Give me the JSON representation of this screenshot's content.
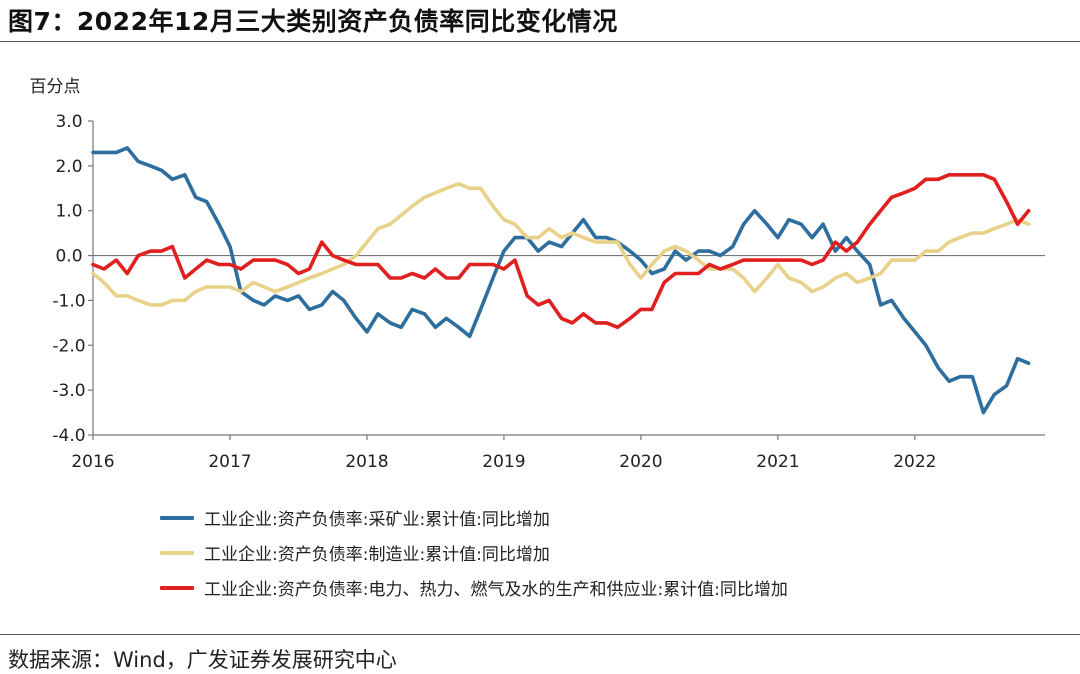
{
  "header": {
    "title": "图7：2022年12月三大类别资产负债率同比变化情况"
  },
  "footer": {
    "source": "数据来源：Wind，广发证券发展研究中心"
  },
  "chart_data": {
    "type": "line",
    "unit_label": "百分点",
    "ylim": [
      -4.0,
      3.0
    ],
    "yticks": [
      "3.0",
      "2.0",
      "1.0",
      "0.0",
      "-1.0",
      "-2.0",
      "-3.0",
      "-4.0"
    ],
    "xlim": [
      2016,
      2022.95
    ],
    "xticks": [
      "2016",
      "2017",
      "2018",
      "2019",
      "2020",
      "2021",
      "2022"
    ],
    "grid": false,
    "legend_position": "bottom",
    "series": [
      {
        "name": "工业企业:资产负债率:采矿业:累计值:同比增加",
        "color": "#2e6e9e",
        "points": [
          [
            2016.0,
            2.3
          ],
          [
            2016.08,
            2.3
          ],
          [
            2016.17,
            2.3
          ],
          [
            2016.25,
            2.4
          ],
          [
            2016.33,
            2.1
          ],
          [
            2016.42,
            2.0
          ],
          [
            2016.5,
            1.9
          ],
          [
            2016.58,
            1.7
          ],
          [
            2016.67,
            1.8
          ],
          [
            2016.75,
            1.3
          ],
          [
            2016.83,
            1.2
          ],
          [
            2016.92,
            0.7
          ],
          [
            2017.0,
            0.2
          ],
          [
            2017.08,
            -0.8
          ],
          [
            2017.17,
            -1.0
          ],
          [
            2017.25,
            -1.1
          ],
          [
            2017.33,
            -0.9
          ],
          [
            2017.42,
            -1.0
          ],
          [
            2017.5,
            -0.9
          ],
          [
            2017.58,
            -1.2
          ],
          [
            2017.67,
            -1.1
          ],
          [
            2017.75,
            -0.8
          ],
          [
            2017.83,
            -1.0
          ],
          [
            2017.92,
            -1.4
          ],
          [
            2018.0,
            -1.7
          ],
          [
            2018.08,
            -1.3
          ],
          [
            2018.17,
            -1.5
          ],
          [
            2018.25,
            -1.6
          ],
          [
            2018.33,
            -1.2
          ],
          [
            2018.42,
            -1.3
          ],
          [
            2018.5,
            -1.6
          ],
          [
            2018.58,
            -1.4
          ],
          [
            2018.67,
            -1.6
          ],
          [
            2018.75,
            -1.8
          ],
          [
            2018.83,
            -1.2
          ],
          [
            2018.92,
            -0.5
          ],
          [
            2019.0,
            0.1
          ],
          [
            2019.08,
            0.4
          ],
          [
            2019.17,
            0.4
          ],
          [
            2019.25,
            0.1
          ],
          [
            2019.33,
            0.3
          ],
          [
            2019.42,
            0.2
          ],
          [
            2019.5,
            0.5
          ],
          [
            2019.58,
            0.8
          ],
          [
            2019.67,
            0.4
          ],
          [
            2019.75,
            0.4
          ],
          [
            2019.83,
            0.3
          ],
          [
            2019.92,
            0.1
          ],
          [
            2020.0,
            -0.1
          ],
          [
            2020.08,
            -0.4
          ],
          [
            2020.17,
            -0.3
          ],
          [
            2020.25,
            0.1
          ],
          [
            2020.33,
            -0.1
          ],
          [
            2020.42,
            0.1
          ],
          [
            2020.5,
            0.1
          ],
          [
            2020.58,
            0.0
          ],
          [
            2020.67,
            0.2
          ],
          [
            2020.75,
            0.7
          ],
          [
            2020.83,
            1.0
          ],
          [
            2020.92,
            0.7
          ],
          [
            2021.0,
            0.4
          ],
          [
            2021.08,
            0.8
          ],
          [
            2021.17,
            0.7
          ],
          [
            2021.25,
            0.4
          ],
          [
            2021.33,
            0.7
          ],
          [
            2021.42,
            0.1
          ],
          [
            2021.5,
            0.4
          ],
          [
            2021.58,
            0.1
          ],
          [
            2021.67,
            -0.2
          ],
          [
            2021.75,
            -1.1
          ],
          [
            2021.83,
            -1.0
          ],
          [
            2021.92,
            -1.4
          ],
          [
            2022.0,
            -1.7
          ],
          [
            2022.08,
            -2.0
          ],
          [
            2022.17,
            -2.5
          ],
          [
            2022.25,
            -2.8
          ],
          [
            2022.33,
            -2.7
          ],
          [
            2022.42,
            -2.7
          ],
          [
            2022.5,
            -3.5
          ],
          [
            2022.58,
            -3.1
          ],
          [
            2022.67,
            -2.9
          ],
          [
            2022.75,
            -2.3
          ],
          [
            2022.83,
            -2.4
          ]
        ]
      },
      {
        "name": "工业企业:资产负债率:制造业:累计值:同比增加",
        "color": "#e8d28a",
        "points": [
          [
            2016.0,
            -0.4
          ],
          [
            2016.08,
            -0.6
          ],
          [
            2016.17,
            -0.9
          ],
          [
            2016.25,
            -0.9
          ],
          [
            2016.33,
            -1.0
          ],
          [
            2016.42,
            -1.1
          ],
          [
            2016.5,
            -1.1
          ],
          [
            2016.58,
            -1.0
          ],
          [
            2016.67,
            -1.0
          ],
          [
            2016.75,
            -0.8
          ],
          [
            2016.83,
            -0.7
          ],
          [
            2016.92,
            -0.7
          ],
          [
            2017.0,
            -0.7
          ],
          [
            2017.08,
            -0.8
          ],
          [
            2017.17,
            -0.6
          ],
          [
            2017.25,
            -0.7
          ],
          [
            2017.33,
            -0.8
          ],
          [
            2017.42,
            -0.7
          ],
          [
            2017.5,
            -0.6
          ],
          [
            2017.58,
            -0.5
          ],
          [
            2017.67,
            -0.4
          ],
          [
            2017.75,
            -0.3
          ],
          [
            2017.83,
            -0.2
          ],
          [
            2017.92,
            0.0
          ],
          [
            2018.0,
            0.3
          ],
          [
            2018.08,
            0.6
          ],
          [
            2018.17,
            0.7
          ],
          [
            2018.25,
            0.9
          ],
          [
            2018.33,
            1.1
          ],
          [
            2018.42,
            1.3
          ],
          [
            2018.5,
            1.4
          ],
          [
            2018.58,
            1.5
          ],
          [
            2018.67,
            1.6
          ],
          [
            2018.75,
            1.5
          ],
          [
            2018.83,
            1.5
          ],
          [
            2018.92,
            1.1
          ],
          [
            2019.0,
            0.8
          ],
          [
            2019.08,
            0.7
          ],
          [
            2019.17,
            0.4
          ],
          [
            2019.25,
            0.4
          ],
          [
            2019.33,
            0.6
          ],
          [
            2019.42,
            0.4
          ],
          [
            2019.5,
            0.5
          ],
          [
            2019.58,
            0.4
          ],
          [
            2019.67,
            0.3
          ],
          [
            2019.75,
            0.3
          ],
          [
            2019.83,
            0.3
          ],
          [
            2019.92,
            -0.2
          ],
          [
            2020.0,
            -0.5
          ],
          [
            2020.08,
            -0.2
          ],
          [
            2020.17,
            0.1
          ],
          [
            2020.25,
            0.2
          ],
          [
            2020.33,
            0.1
          ],
          [
            2020.42,
            -0.1
          ],
          [
            2020.5,
            -0.3
          ],
          [
            2020.58,
            -0.3
          ],
          [
            2020.67,
            -0.3
          ],
          [
            2020.75,
            -0.5
          ],
          [
            2020.83,
            -0.8
          ],
          [
            2020.92,
            -0.5
          ],
          [
            2021.0,
            -0.2
          ],
          [
            2021.08,
            -0.5
          ],
          [
            2021.17,
            -0.6
          ],
          [
            2021.25,
            -0.8
          ],
          [
            2021.33,
            -0.7
          ],
          [
            2021.42,
            -0.5
          ],
          [
            2021.5,
            -0.4
          ],
          [
            2021.58,
            -0.6
          ],
          [
            2021.67,
            -0.5
          ],
          [
            2021.75,
            -0.4
          ],
          [
            2021.83,
            -0.1
          ],
          [
            2021.92,
            -0.1
          ],
          [
            2022.0,
            -0.1
          ],
          [
            2022.08,
            0.1
          ],
          [
            2022.17,
            0.1
          ],
          [
            2022.25,
            0.3
          ],
          [
            2022.33,
            0.4
          ],
          [
            2022.42,
            0.5
          ],
          [
            2022.5,
            0.5
          ],
          [
            2022.58,
            0.6
          ],
          [
            2022.67,
            0.7
          ],
          [
            2022.75,
            0.8
          ],
          [
            2022.83,
            0.7
          ]
        ]
      },
      {
        "name": "工业企业:资产负债率:电力、热力、燃气及水的生产和供应业:累计值:同比增加",
        "color": "#e01f1f",
        "points": [
          [
            2016.0,
            -0.2
          ],
          [
            2016.08,
            -0.3
          ],
          [
            2016.17,
            -0.1
          ],
          [
            2016.25,
            -0.4
          ],
          [
            2016.33,
            0.0
          ],
          [
            2016.42,
            0.1
          ],
          [
            2016.5,
            0.1
          ],
          [
            2016.58,
            0.2
          ],
          [
            2016.67,
            -0.5
          ],
          [
            2016.75,
            -0.3
          ],
          [
            2016.83,
            -0.1
          ],
          [
            2016.92,
            -0.2
          ],
          [
            2017.0,
            -0.2
          ],
          [
            2017.08,
            -0.3
          ],
          [
            2017.17,
            -0.1
          ],
          [
            2017.25,
            -0.1
          ],
          [
            2017.33,
            -0.1
          ],
          [
            2017.42,
            -0.2
          ],
          [
            2017.5,
            -0.4
          ],
          [
            2017.58,
            -0.3
          ],
          [
            2017.67,
            0.3
          ],
          [
            2017.75,
            0.0
          ],
          [
            2017.83,
            -0.1
          ],
          [
            2017.92,
            -0.2
          ],
          [
            2018.0,
            -0.2
          ],
          [
            2018.08,
            -0.2
          ],
          [
            2018.17,
            -0.5
          ],
          [
            2018.25,
            -0.5
          ],
          [
            2018.33,
            -0.4
          ],
          [
            2018.42,
            -0.5
          ],
          [
            2018.5,
            -0.3
          ],
          [
            2018.58,
            -0.5
          ],
          [
            2018.67,
            -0.5
          ],
          [
            2018.75,
            -0.2
          ],
          [
            2018.83,
            -0.2
          ],
          [
            2018.92,
            -0.2
          ],
          [
            2019.0,
            -0.3
          ],
          [
            2019.08,
            -0.1
          ],
          [
            2019.17,
            -0.9
          ],
          [
            2019.25,
            -1.1
          ],
          [
            2019.33,
            -1.0
          ],
          [
            2019.42,
            -1.4
          ],
          [
            2019.5,
            -1.5
          ],
          [
            2019.58,
            -1.3
          ],
          [
            2019.67,
            -1.5
          ],
          [
            2019.75,
            -1.5
          ],
          [
            2019.83,
            -1.6
          ],
          [
            2019.92,
            -1.4
          ],
          [
            2020.0,
            -1.2
          ],
          [
            2020.08,
            -1.2
          ],
          [
            2020.17,
            -0.6
          ],
          [
            2020.25,
            -0.4
          ],
          [
            2020.33,
            -0.4
          ],
          [
            2020.42,
            -0.4
          ],
          [
            2020.5,
            -0.2
          ],
          [
            2020.58,
            -0.3
          ],
          [
            2020.67,
            -0.2
          ],
          [
            2020.75,
            -0.1
          ],
          [
            2020.83,
            -0.1
          ],
          [
            2020.92,
            -0.1
          ],
          [
            2021.0,
            -0.1
          ],
          [
            2021.08,
            -0.1
          ],
          [
            2021.17,
            -0.1
          ],
          [
            2021.25,
            -0.2
          ],
          [
            2021.33,
            -0.1
          ],
          [
            2021.42,
            0.3
          ],
          [
            2021.5,
            0.1
          ],
          [
            2021.58,
            0.3
          ],
          [
            2021.67,
            0.7
          ],
          [
            2021.75,
            1.0
          ],
          [
            2021.83,
            1.3
          ],
          [
            2021.92,
            1.4
          ],
          [
            2022.0,
            1.5
          ],
          [
            2022.08,
            1.7
          ],
          [
            2022.17,
            1.7
          ],
          [
            2022.25,
            1.8
          ],
          [
            2022.33,
            1.8
          ],
          [
            2022.42,
            1.8
          ],
          [
            2022.5,
            1.8
          ],
          [
            2022.58,
            1.7
          ],
          [
            2022.67,
            1.2
          ],
          [
            2022.75,
            0.7
          ],
          [
            2022.83,
            1.0
          ]
        ]
      }
    ]
  }
}
